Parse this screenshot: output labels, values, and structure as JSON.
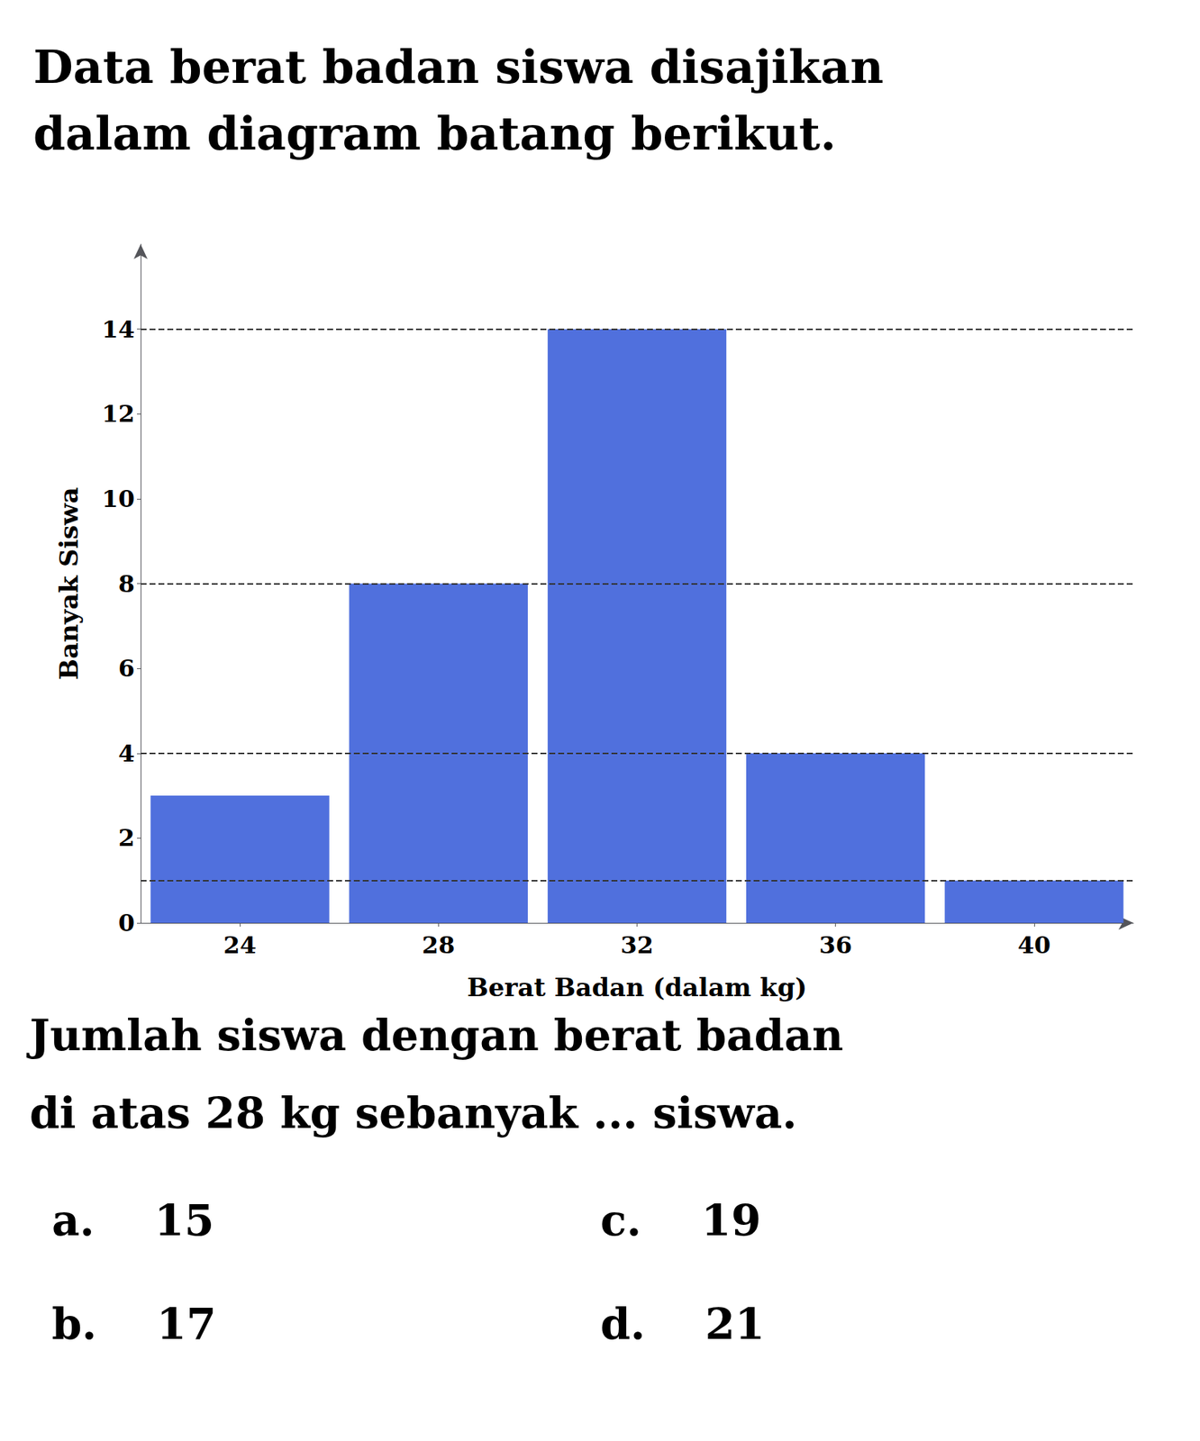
{
  "chart_data": {
    "type": "bar",
    "title": "Data berat badan siswa disajikan\ndalam diagram batang berikut.",
    "x_label": "Berat Badan (dalam kg)",
    "y_label": "Banyak Siswa",
    "categories": [
      24,
      28,
      32,
      36,
      40
    ],
    "values": [
      3,
      8,
      14,
      4,
      1
    ],
    "ylim": [
      0,
      16
    ],
    "yticks": [
      0,
      2,
      4,
      6,
      8,
      10,
      12,
      14
    ],
    "reference_lines": [
      1,
      4,
      8,
      14
    ],
    "grid": false,
    "annotations": [
      "Jumlah siswa dengan berat badan",
      "di atas 28 kg sebanyak ... siswa.",
      "a.    15",
      "c.    19",
      "b.    17",
      "d.    21"
    ]
  }
}
